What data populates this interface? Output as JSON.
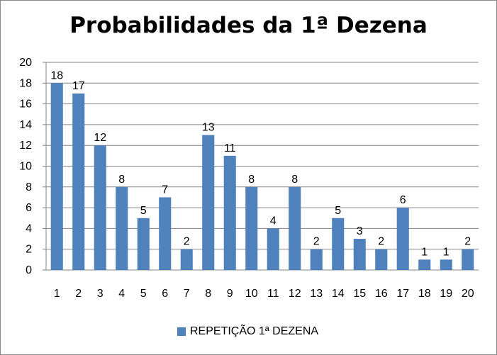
{
  "chart_data": {
    "type": "bar",
    "title": "Probabilidades da 1ª Dezena",
    "xlabel": "",
    "ylabel": "",
    "categories": [
      "1",
      "2",
      "3",
      "4",
      "5",
      "6",
      "7",
      "8",
      "9",
      "10",
      "11",
      "12",
      "13",
      "14",
      "15",
      "16",
      "17",
      "18",
      "19",
      "20"
    ],
    "series": [
      {
        "name": "REPETIÇÃO 1ª DEZENA",
        "values": [
          18,
          17,
          12,
          8,
          5,
          7,
          2,
          13,
          11,
          8,
          4,
          8,
          2,
          5,
          3,
          2,
          6,
          1,
          1,
          2
        ],
        "color": "#4f81bd"
      }
    ],
    "ylim": [
      0,
      20
    ],
    "yticks": [
      "0",
      "2",
      "4",
      "6",
      "8",
      "10",
      "12",
      "14",
      "16",
      "18",
      "20"
    ],
    "grid": true,
    "legend_position": "bottom",
    "data_labels": true
  }
}
